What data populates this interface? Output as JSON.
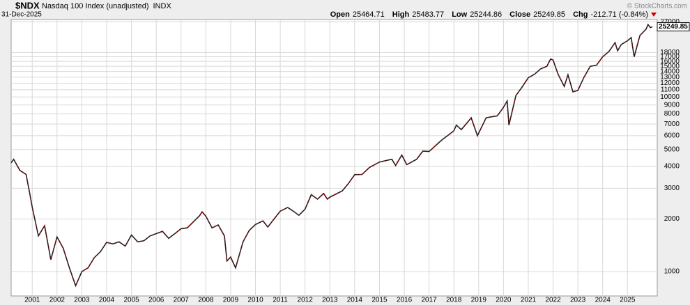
{
  "chart_data": {
    "type": "line",
    "symbol": "$NDX",
    "name": "Nasdaq 100 Index (unadjusted)",
    "exchange": "INDX",
    "date": "31-Dec-2025",
    "ohlc": [
      {
        "label": "Open",
        "value": "25464.71"
      },
      {
        "label": "High",
        "value": "25483.77"
      },
      {
        "label": "Low",
        "value": "25244.86"
      },
      {
        "label": "Close",
        "value": "25249.85"
      },
      {
        "label": "Chg",
        "value": "-212.71 (-0.84%)"
      }
    ],
    "watermark": "© StockCharts.com",
    "x": [
      2000.15,
      2000.25,
      2000.5,
      2000.75,
      2000.9,
      2001.0,
      2001.25,
      2001.5,
      2001.75,
      2002.0,
      2002.25,
      2002.5,
      2002.75,
      2003.0,
      2003.25,
      2003.5,
      2003.75,
      2004.0,
      2004.25,
      2004.5,
      2004.75,
      2005.0,
      2005.25,
      2005.5,
      2005.75,
      2006.0,
      2006.25,
      2006.5,
      2006.75,
      2007.0,
      2007.25,
      2007.5,
      2007.75,
      2007.85,
      2008.0,
      2008.25,
      2008.5,
      2008.75,
      2008.85,
      2009.0,
      2009.2,
      2009.5,
      2009.75,
      2010.0,
      2010.3,
      2010.5,
      2010.75,
      2011.0,
      2011.3,
      2011.6,
      2011.75,
      2012.0,
      2012.25,
      2012.5,
      2012.75,
      2012.9,
      2013.0,
      2013.5,
      2013.75,
      2014.0,
      2014.3,
      2014.6,
      2015.0,
      2015.5,
      2015.65,
      2015.9,
      2016.1,
      2016.5,
      2016.75,
      2017.0,
      2017.5,
      2018.0,
      2018.1,
      2018.3,
      2018.7,
      2018.95,
      2019.3,
      2019.5,
      2019.75,
      2020.0,
      2020.15,
      2020.22,
      2020.5,
      2020.75,
      2021.0,
      2021.25,
      2021.5,
      2021.75,
      2021.9,
      2022.0,
      2022.2,
      2022.45,
      2022.6,
      2022.8,
      2023.0,
      2023.25,
      2023.5,
      2023.75,
      2024.0,
      2024.25,
      2024.5,
      2024.6,
      2024.75,
      2025.0,
      2025.15,
      2025.27,
      2025.5,
      2025.75,
      2025.83,
      2025.92,
      2026.0
    ],
    "series": [
      {
        "name": "$NDX",
        "color": "#1a1a1a",
        "values": [
          4200,
          4400,
          3800,
          3600,
          2800,
          2340,
          1600,
          1830,
          1170,
          1580,
          1360,
          1050,
          830,
          1000,
          1050,
          1200,
          1300,
          1470,
          1440,
          1480,
          1400,
          1620,
          1480,
          1500,
          1600,
          1650,
          1700,
          1550,
          1650,
          1760,
          1780,
          1930,
          2090,
          2200,
          2080,
          1780,
          1850,
          1600,
          1150,
          1210,
          1050,
          1480,
          1720,
          1860,
          1950,
          1800,
          2000,
          2220,
          2330,
          2180,
          2100,
          2280,
          2760,
          2600,
          2800,
          2600,
          2670,
          2900,
          3200,
          3590,
          3600,
          3950,
          4240,
          4400,
          4050,
          4650,
          4100,
          4400,
          4900,
          4870,
          5650,
          6400,
          6900,
          6500,
          7600,
          6000,
          7600,
          7700,
          7800,
          8730,
          9500,
          6900,
          10200,
          11400,
          12900,
          13500,
          14500,
          15000,
          16500,
          16300,
          13500,
          11500,
          13400,
          10700,
          10900,
          13000,
          15000,
          15200,
          17000,
          18200,
          20500,
          18400,
          20000,
          21000,
          21900,
          17000,
          22500,
          24500,
          26000,
          25000,
          25249.85
        ]
      }
    ],
    "log_scale": true,
    "grid": true,
    "xlim": [
      2000.15,
      2026.2
    ],
    "xticks": [
      2001,
      2002,
      2003,
      2004,
      2005,
      2006,
      2007,
      2008,
      2009,
      2010,
      2011,
      2012,
      2013,
      2014,
      2015,
      2016,
      2017,
      2018,
      2019,
      2020,
      2021,
      2022,
      2023,
      2024,
      2025
    ],
    "ylim": [
      725,
      27800
    ],
    "yticks": [
      1000,
      2000,
      3000,
      4000,
      5000,
      6000,
      7000,
      8000,
      9000,
      10000,
      11000,
      12000,
      13000,
      14000,
      15000,
      16000,
      17000,
      18000,
      27000
    ]
  }
}
